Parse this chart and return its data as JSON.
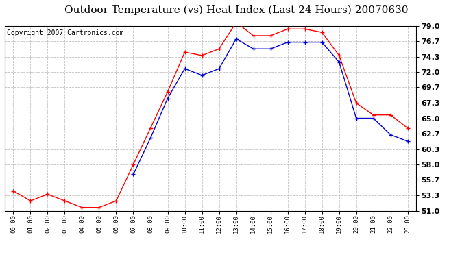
{
  "title": "Outdoor Temperature (vs) Heat Index (Last 24 Hours) 20070630",
  "copyright": "Copyright 2007 Cartronics.com",
  "hours": [
    "00:00",
    "01:00",
    "02:00",
    "03:00",
    "04:00",
    "05:00",
    "06:00",
    "07:00",
    "08:00",
    "09:00",
    "10:00",
    "11:00",
    "12:00",
    "13:00",
    "14:00",
    "15:00",
    "16:00",
    "17:00",
    "18:00",
    "19:00",
    "20:00",
    "21:00",
    "22:00",
    "23:00"
  ],
  "temp_red": [
    54.0,
    52.5,
    53.5,
    52.5,
    51.5,
    51.5,
    52.5,
    58.0,
    63.5,
    69.0,
    75.0,
    74.5,
    75.5,
    79.5,
    77.5,
    77.5,
    78.5,
    78.5,
    78.0,
    74.5,
    67.3,
    65.5,
    65.5,
    63.5
  ],
  "heat_blue": [
    null,
    null,
    null,
    null,
    null,
    null,
    null,
    56.5,
    62.0,
    68.0,
    72.5,
    71.5,
    72.5,
    77.0,
    75.5,
    75.5,
    76.5,
    76.5,
    76.5,
    73.5,
    65.0,
    65.0,
    62.5,
    61.5
  ],
  "ylim_min": 51.0,
  "ylim_max": 79.0,
  "yticks": [
    51.0,
    53.3,
    55.7,
    58.0,
    60.3,
    62.7,
    65.0,
    67.3,
    69.7,
    72.0,
    74.3,
    76.7,
    79.0
  ],
  "bg_color": "#ffffff",
  "plot_bg_color": "#ffffff",
  "grid_color": "#bbbbbb",
  "red_color": "#ff0000",
  "blue_color": "#0000cc",
  "title_fontsize": 11,
  "copyright_fontsize": 7
}
